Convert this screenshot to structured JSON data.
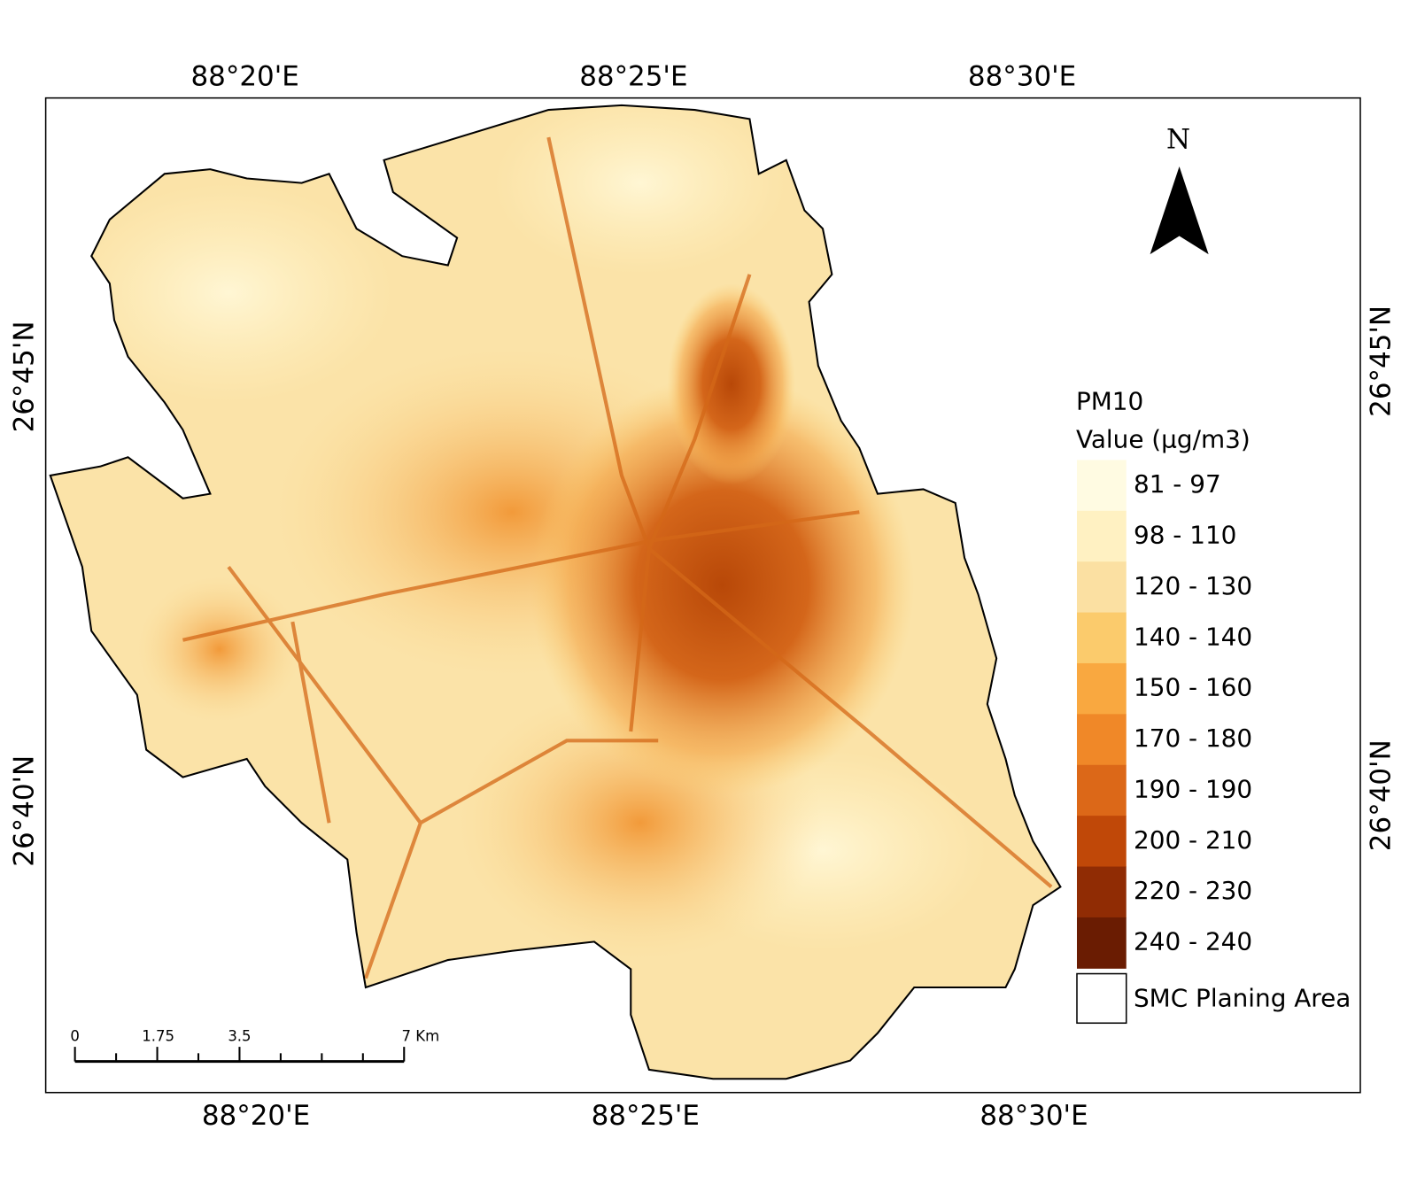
{
  "map": {
    "top_labels": [
      "88°20'E",
      "88°25'E",
      "88°30'E"
    ],
    "bottom_labels": [
      "88°20'E",
      "88°25'E",
      "88°30'E"
    ],
    "left_labels": [
      "26°45'N",
      "26°40'N"
    ],
    "right_labels": [
      "26°45'N",
      "26°40'N"
    ],
    "north": "N",
    "legend": {
      "title": "PM10",
      "subtitle": "Value (µg/m3)",
      "classes": [
        {
          "label": "81 - 97",
          "color": "#fffbe2"
        },
        {
          "label": "98 - 110",
          "color": "#fff1c2"
        },
        {
          "label": "120 - 130",
          "color": "#fbe0a2"
        },
        {
          "label": "140 - 140",
          "color": "#fbcb6c"
        },
        {
          "label": "150 - 160",
          "color": "#f9a840"
        },
        {
          "label": "170 - 180",
          "color": "#f08828"
        },
        {
          "label": "190 - 190",
          "color": "#dc6818"
        },
        {
          "label": "200 - 210",
          "color": "#c04808"
        },
        {
          "label": "220 - 230",
          "color": "#902c04"
        },
        {
          "label": "240 - 240",
          "color": "#6a1c02"
        }
      ],
      "boundary_label": "SMC Planing Area"
    },
    "scale_bar": {
      "labels": [
        "0",
        "1.75",
        "3.5",
        "7 Km"
      ]
    }
  }
}
